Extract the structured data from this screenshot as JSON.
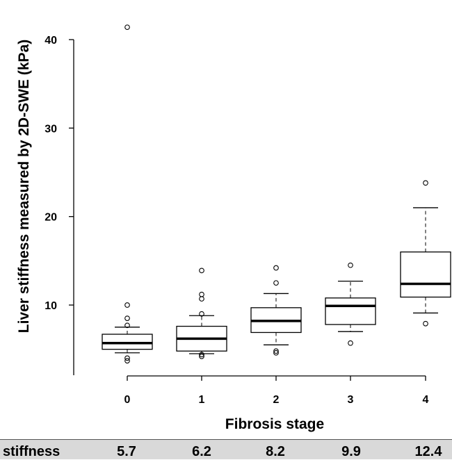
{
  "chart_data": {
    "type": "box",
    "xlabel": "Fibrosis stage",
    "ylabel": "Liver stiffness measured by 2D-SWE (kPa)",
    "ylim": [
      2,
      43
    ],
    "yticks": [
      10,
      20,
      30,
      40
    ],
    "categories": [
      "0",
      "1",
      "2",
      "3",
      "4"
    ],
    "boxes": [
      {
        "category": "0",
        "whisker_low": 4.6,
        "q1": 5.0,
        "median": 5.7,
        "q3": 6.7,
        "whisker_high": 7.5,
        "outliers": [
          3.7,
          4.0,
          7.7,
          8.5,
          10.0,
          41.4
        ]
      },
      {
        "category": "1",
        "whisker_low": 4.5,
        "q1": 4.8,
        "median": 6.2,
        "q3": 7.6,
        "whisker_high": 8.8,
        "outliers": [
          4.2,
          4.4,
          9.0,
          10.7,
          11.2,
          13.9
        ]
      },
      {
        "category": "2",
        "whisker_low": 5.5,
        "q1": 6.9,
        "median": 8.2,
        "q3": 9.7,
        "whisker_high": 11.3,
        "outliers": [
          4.6,
          4.8,
          12.5,
          14.2
        ]
      },
      {
        "category": "3",
        "whisker_low": 7.0,
        "q1": 7.8,
        "median": 9.9,
        "q3": 10.8,
        "whisker_high": 12.7,
        "outliers": [
          5.7,
          14.5
        ]
      },
      {
        "category": "4",
        "whisker_low": 9.1,
        "q1": 10.9,
        "median": 12.4,
        "q3": 16.0,
        "whisker_high": 21.0,
        "outliers": [
          7.9,
          23.8
        ]
      }
    ]
  },
  "stats_row": {
    "label": "stiffness",
    "values": [
      "5.7",
      "6.2",
      "8.2",
      "9.9",
      "12.4"
    ]
  }
}
